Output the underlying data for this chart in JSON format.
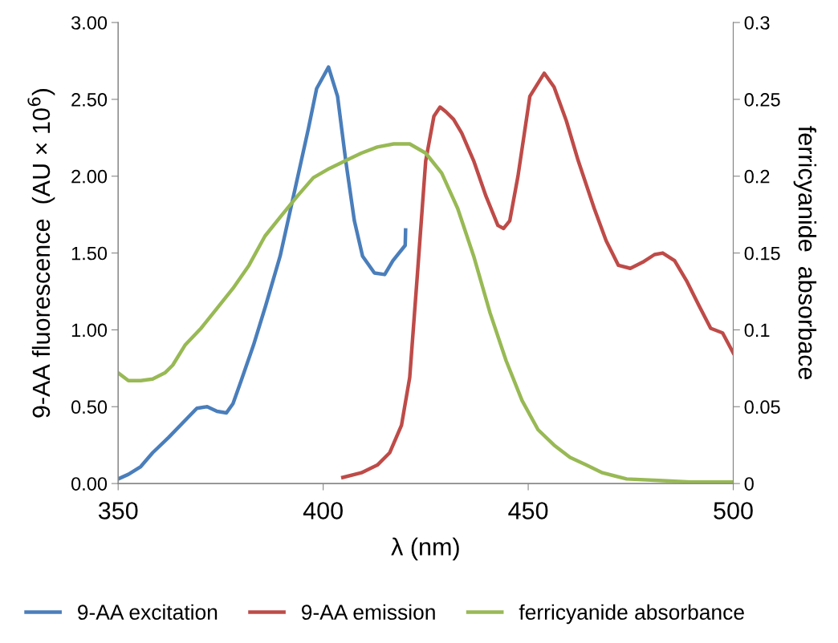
{
  "chart_data": {
    "type": "line",
    "xlabel": "λ (nm)",
    "ylabel": "9-AA fluorescence  (AU × 10$^{6}$)",
    "y2label": "ferricyanide  absorbace",
    "xlim": [
      350,
      500
    ],
    "xticks": [
      350,
      400,
      450,
      500
    ],
    "ylim": [
      0,
      3
    ],
    "yticks": [
      {
        "value": 0,
        "label": "0.00"
      },
      {
        "value": 0.5,
        "label": "0.50"
      },
      {
        "value": 1,
        "label": "1.00"
      },
      {
        "value": 1.5,
        "label": "1.50"
      },
      {
        "value": 2,
        "label": "2.00"
      },
      {
        "value": 2.5,
        "label": "2.50"
      },
      {
        "value": 3,
        "label": "3.00"
      }
    ],
    "y2lim": [
      0,
      0.3
    ],
    "y2ticks": [
      0,
      0.05,
      0.1,
      0.15,
      0.2,
      0.25,
      0.3
    ],
    "grid": false,
    "legend": "bottom",
    "marker": "none",
    "line_style": "solid",
    "series": [
      {
        "name": "9-AA excitation",
        "color": "#4a7ebb",
        "x": [
          350,
          352.5,
          355.5,
          358.4,
          362.3,
          366.3,
          369.2,
          371.7,
          374.1,
          376.4,
          378,
          380,
          383,
          386,
          389.5,
          392.5,
          396.4,
          398.4,
          401.3,
          403.5,
          405.5,
          407.6,
          409.6,
          412.5,
          415,
          417,
          420,
          420.1
        ],
        "values": [
          0.03,
          0.06,
          0.11,
          0.2,
          0.3,
          0.41,
          0.49,
          0.5,
          0.47,
          0.46,
          0.52,
          0.67,
          0.9,
          1.16,
          1.48,
          1.84,
          2.31,
          2.57,
          2.71,
          2.52,
          2.1,
          1.71,
          1.48,
          1.37,
          1.36,
          1.45,
          1.55,
          1.65
        ]
      },
      {
        "name": "9-AA emission",
        "color": "#be4b48",
        "x": [
          404.8,
          409.3,
          413.2,
          416.2,
          419.1,
          421.1,
          423,
          425,
          427,
          428.5,
          429.9,
          431.8,
          433.8,
          436.7,
          439.7,
          442.6,
          444,
          445.5,
          447.5,
          450.4,
          453.9,
          456.3,
          459.3,
          462.2,
          466.1,
          469,
          472,
          474.9,
          477.9,
          480.8,
          482.8,
          485.7,
          488.6,
          491.6,
          494.5,
          497.4,
          500
        ],
        "values": [
          0.04,
          0.07,
          0.12,
          0.2,
          0.38,
          0.69,
          1.37,
          2.1,
          2.39,
          2.45,
          2.42,
          2.37,
          2.28,
          2.1,
          1.87,
          1.68,
          1.66,
          1.71,
          2.0,
          2.52,
          2.67,
          2.58,
          2.36,
          2.1,
          1.79,
          1.58,
          1.42,
          1.4,
          1.44,
          1.49,
          1.5,
          1.45,
          1.32,
          1.16,
          1.01,
          0.98,
          0.85
        ]
      },
      {
        "name": "ferricyanide absorbance",
        "color": "#98b954",
        "axis": "y2",
        "x": [
          350,
          352.5,
          355.5,
          358.4,
          361.4,
          363.3,
          366.3,
          370.2,
          374.1,
          378,
          381.9,
          385.8,
          389.7,
          393.7,
          397.6,
          401.5,
          405.4,
          409.3,
          413.2,
          417.2,
          421.1,
          425,
          428.9,
          432.8,
          436.7,
          440.7,
          444.6,
          448.5,
          452.4,
          456.3,
          460.2,
          464.2,
          468.1,
          474,
          481.8,
          489.6,
          500
        ],
        "values": [
          0.072,
          0.067,
          0.067,
          0.068,
          0.072,
          0.077,
          0.09,
          0.101,
          0.114,
          0.127,
          0.142,
          0.161,
          0.174,
          0.187,
          0.199,
          0.205,
          0.21,
          0.215,
          0.219,
          0.221,
          0.221,
          0.215,
          0.202,
          0.179,
          0.148,
          0.111,
          0.08,
          0.054,
          0.035,
          0.025,
          0.017,
          0.012,
          0.007,
          0.003,
          0.002,
          0.001,
          0.001
        ]
      }
    ]
  }
}
